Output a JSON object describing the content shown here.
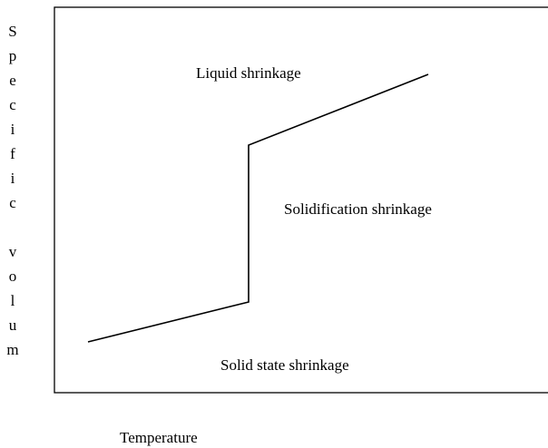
{
  "y_axis_label": "Specific volum",
  "x_axis_label": "Temperature",
  "regions": {
    "liquid": "Liquid shrinkage",
    "solidification": "Solidification shrinkage",
    "solid": "Solid state shrinkage"
  }
}
